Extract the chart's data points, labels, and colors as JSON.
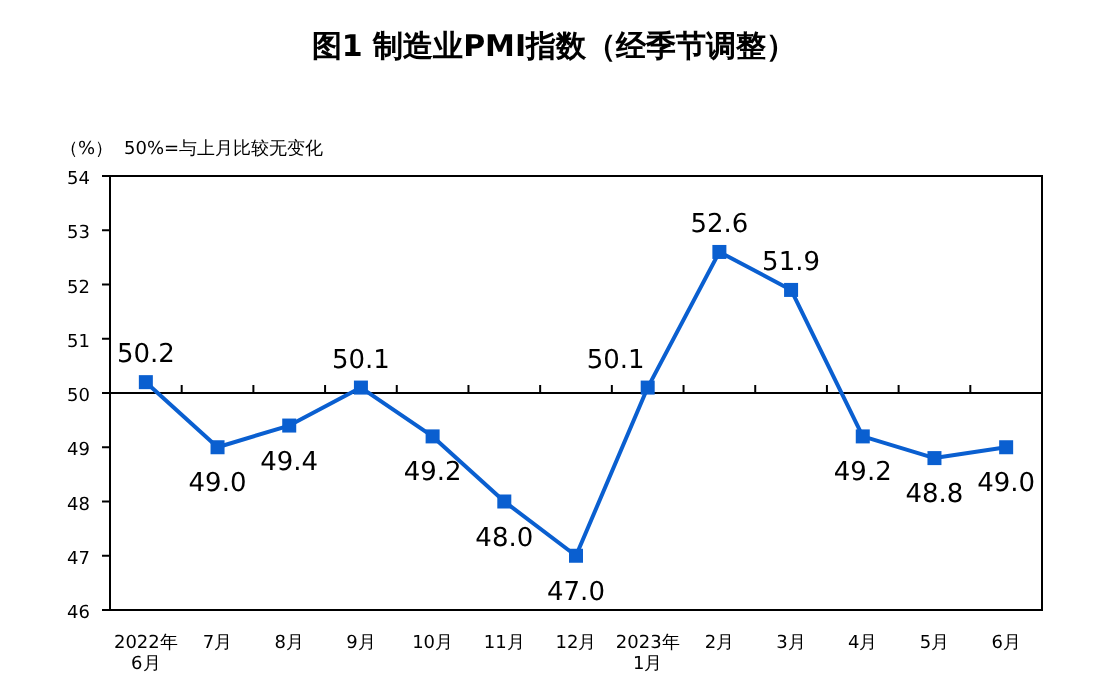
{
  "chart_data": {
    "type": "line",
    "title": "图1 制造业PMI指数（经季节调整）",
    "ylabel": "（%）",
    "annotations": [
      "50%=与上月比较无变化"
    ],
    "categories": [
      "2022年\n6月",
      "7月",
      "8月",
      "9月",
      "10月",
      "11月",
      "12月",
      "2023年\n1月",
      "2月",
      "3月",
      "4月",
      "5月",
      "6月"
    ],
    "series": [
      {
        "color": "#0a5fd0",
        "values": [
          50.2,
          49.0,
          49.4,
          50.1,
          49.2,
          48.0,
          47.0,
          50.1,
          52.6,
          51.9,
          49.2,
          48.8,
          49.0
        ],
        "value_labels": [
          "50.2",
          "49.0",
          "49.4",
          "50.1",
          "49.2",
          "48.0",
          "47.0",
          "50.1",
          "52.6",
          "51.9",
          "49.2",
          "48.8",
          "49.0"
        ]
      }
    ],
    "ylim": [
      46,
      54
    ],
    "yticks": [
      46,
      47,
      48,
      49,
      50,
      51,
      52,
      53,
      54
    ],
    "ref_lines": [
      {
        "axis": "y",
        "value": 50,
        "color": "#000000"
      }
    ],
    "marker": "square",
    "line_style": "solid"
  }
}
